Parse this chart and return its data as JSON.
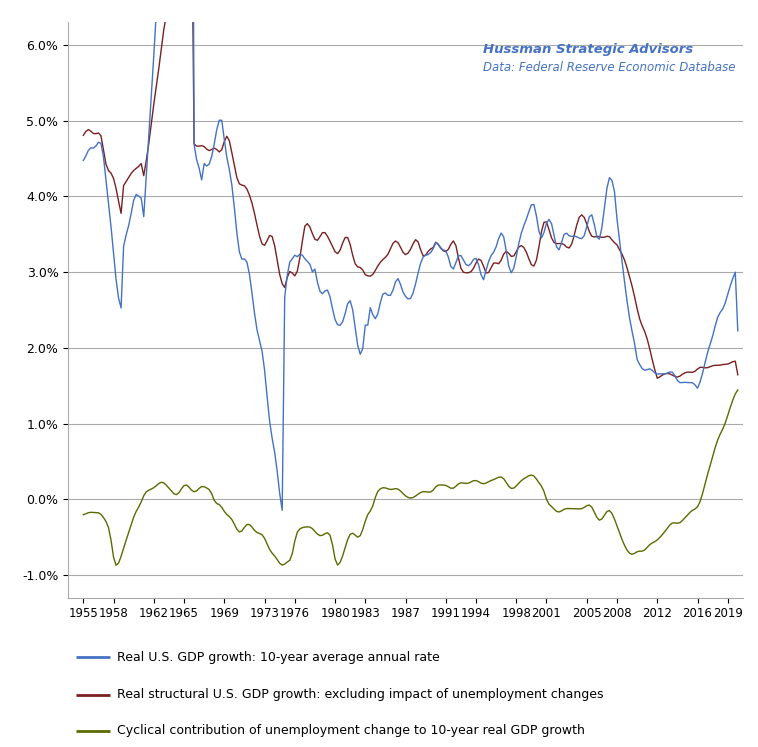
{
  "title_line1": "Hussman Strategic Advisors",
  "title_line2": "Data: Federal Reserve Economic Database",
  "title_color": "#4472C4",
  "legend_labels": [
    "Real U.S. GDP growth: 10-year average annual rate",
    "Real structural U.S. GDP growth: excluding impact of unemployment changes",
    "Cyclical contribution of unemployment change to 10-year real GDP growth"
  ],
  "line_colors": [
    "#4472C4",
    "#7B2020",
    "#5B6B00"
  ],
  "ylim": [
    -0.013,
    0.063
  ],
  "yticks": [
    -0.01,
    0.0,
    0.01,
    0.02,
    0.03,
    0.04,
    0.05,
    0.06
  ],
  "ytick_labels": [
    "-1.0%",
    "0.0%",
    "1.0%",
    "2.0%",
    "3.0%",
    "4.0%",
    "5.0%",
    "6.0%"
  ],
  "xtick_years": [
    1955,
    1958,
    1962,
    1965,
    1969,
    1973,
    1976,
    1980,
    1983,
    1987,
    1991,
    1994,
    1998,
    2001,
    2005,
    2008,
    2012,
    2016,
    2019
  ],
  "background_color": "#FFFFFF",
  "grid_color": "#AAAAAA"
}
